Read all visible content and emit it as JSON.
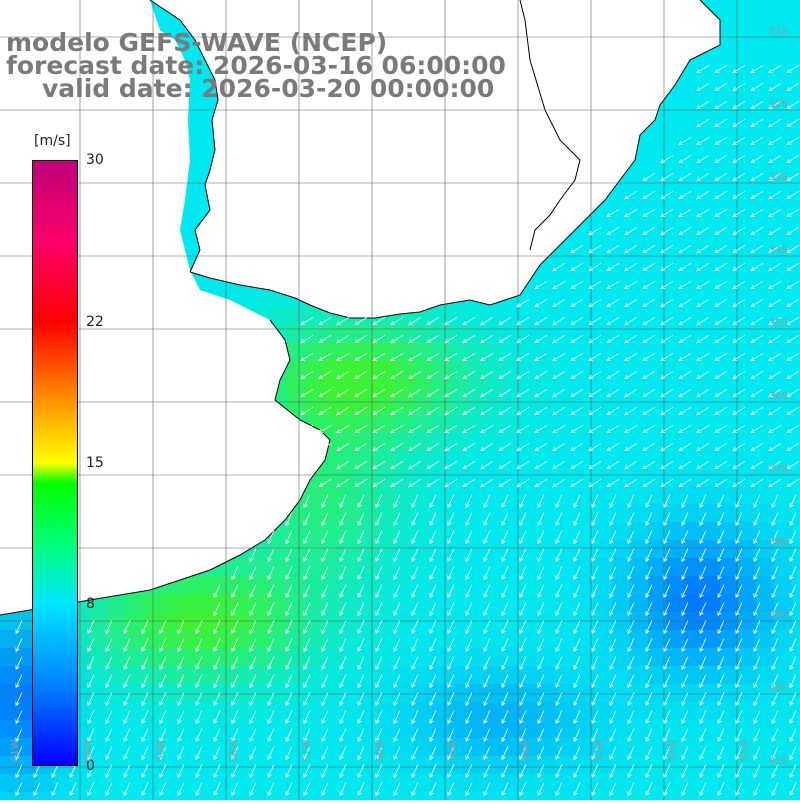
{
  "title": {
    "line1": "modelo GEFS-WAVE (NCEP)",
    "line2": "forecast date: 2026-03-16 06:00:00",
    "line3": "valid date: 2026-03-20 00:00:00"
  },
  "colorbar": {
    "units": "[m/s]",
    "ticks": [
      {
        "label": "30",
        "value": 30
      },
      {
        "label": "22",
        "value": 22
      },
      {
        "label": "15",
        "value": 15
      },
      {
        "label": "8",
        "value": 8
      },
      {
        "label": "0",
        "value": 0
      }
    ]
  },
  "lat_labels": [
    "31S",
    "32S",
    "33S",
    "34S",
    "35S",
    "36S",
    "37S",
    "38S",
    "39S",
    "40S",
    "41S"
  ],
  "lon_labels": [
    "61W",
    "60W",
    "59W",
    "58W",
    "57W",
    "56W",
    "55W",
    "54W",
    "53W",
    "52W",
    "51W"
  ],
  "colors": {
    "land": "#ffffff",
    "coast": "#000000",
    "grid": "#606060",
    "arrow": "#ffffff"
  }
}
